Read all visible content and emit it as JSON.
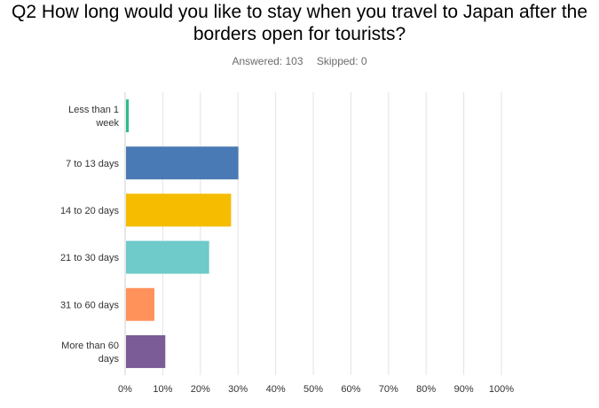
{
  "title": "Q2 How long would you like to stay when you travel to Japan after the borders open for tourists?",
  "answered_label": "Answered: 103",
  "skipped_label": "Skipped: 0",
  "chart_data": {
    "type": "bar",
    "orientation": "horizontal",
    "categories": [
      [
        "Less than 1",
        "week"
      ],
      [
        "7 to 13 days"
      ],
      [
        "14 to 20 days"
      ],
      [
        "21 to 30 days"
      ],
      [
        "31 to 60 days"
      ],
      [
        "More than 60",
        "days"
      ]
    ],
    "values": [
      0.97,
      30.1,
      28.16,
      22.33,
      7.77,
      10.68
    ],
    "colors": [
      "#2dbc8a",
      "#4a7ab5",
      "#f5bc00",
      "#6fcaca",
      "#ff915a",
      "#7b5c96"
    ],
    "xlim": [
      0,
      100
    ],
    "xticks": [
      "0%",
      "10%",
      "20%",
      "30%",
      "40%",
      "50%",
      "60%",
      "70%",
      "80%",
      "90%",
      "100%"
    ],
    "grid": true
  }
}
